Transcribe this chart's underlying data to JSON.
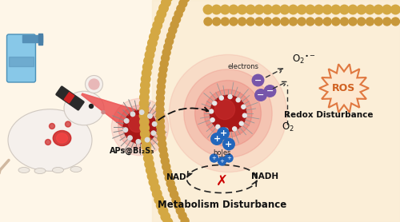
{
  "background_color": "#fef6e8",
  "cell_membrane_color": "#d4a843",
  "cell_membrane_small_color": "#c8983a",
  "cell_interior_color": "#faebd0",
  "laser_color_bright": "#e03030",
  "laser_color_dark": "#b02020",
  "nanoparticle_color": "#c02828",
  "nanoparticle_inner": "#8b1a1a",
  "electron_color": "#7755aa",
  "hole_color": "#2266bb",
  "ros_fill_color": "#fde8d0",
  "ros_edge_color": "#e07840",
  "ros_text_color": "#d06020",
  "text_dark": "#111111",
  "text_bold_dark": "#1a1a2e",
  "red_x_color": "#cc0000",
  "arrow_color": "#222222",
  "dashed_color": "#333333",
  "spike_color": "#999999",
  "label_APs": "APs@Bi₂S₃",
  "label_electrons": "electrons",
  "label_holes": "holes",
  "label_O2_minus": "O₂⁻",
  "label_O2": "O₂",
  "label_NADp": "NAD⁺",
  "label_NADH": "NADH",
  "label_redox": "Redox Disturbance",
  "label_metabolism": "Metabolism Disturbance",
  "label_ROS": "ROS"
}
